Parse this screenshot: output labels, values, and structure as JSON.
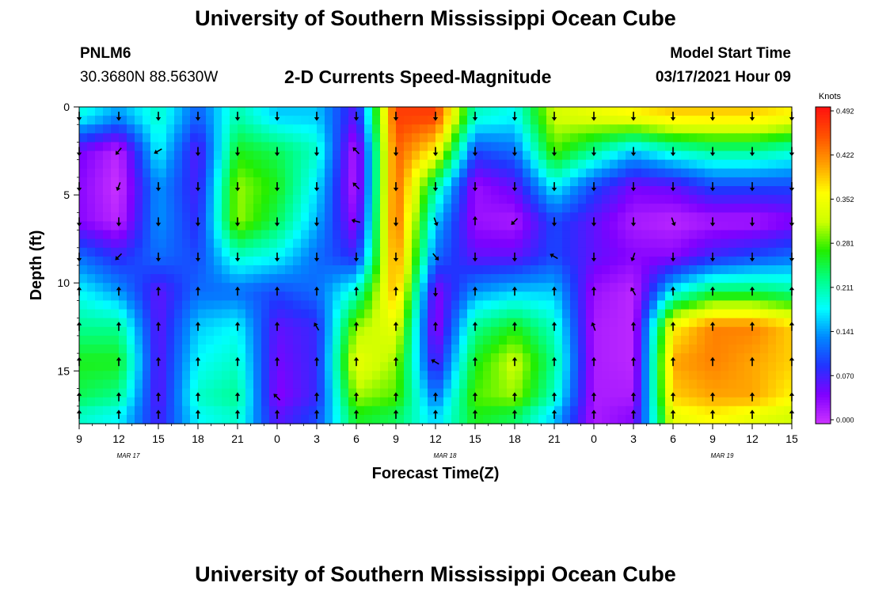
{
  "page": {
    "title_top": "University of Southern Mississippi Ocean Cube",
    "title_bottom": "University of Southern Mississippi Ocean Cube",
    "station_id": "PNLM6",
    "station_coords": "30.3680N 88.5630W",
    "subtitle": "2-D Currents Speed-Magnitude",
    "model_start_label": "Model Start Time",
    "model_start_value": "03/17/2021 Hour 09"
  },
  "colors": {
    "background": "#ffffff",
    "colormap": [
      "#cc33ff",
      "#8000ff",
      "#2233ff",
      "#0088ff",
      "#00ffff",
      "#00ff88",
      "#22ee00",
      "#ccff00",
      "#ffff00",
      "#ffa000",
      "#ff5000",
      "#ff1010"
    ]
  },
  "chart_data": {
    "type": "heatmap",
    "title": "2-D Currents Speed-Magnitude",
    "xlabel": "Forecast Time(Z)",
    "ylabel": "Depth (ft)",
    "x_hours_since_model_start_range": [
      0,
      54
    ],
    "xticks": [
      "9",
      "12",
      "15",
      "18",
      "21",
      "0",
      "3",
      "6",
      "9",
      "12",
      "15",
      "18",
      "21",
      "0",
      "3",
      "6",
      "9",
      "12",
      "15"
    ],
    "date_labels": [
      {
        "label": "MAR 17",
        "at_tick": "12"
      },
      {
        "label": "MAR 18",
        "at_tick": "12"
      },
      {
        "label": "MAR 19",
        "at_tick": "9"
      }
    ],
    "ylim": [
      18,
      0
    ],
    "yticks": [
      0,
      5,
      10,
      15
    ],
    "y_inverted": true,
    "grid": false,
    "colorbar": {
      "title": "Knots",
      "ticks": [
        "0.492",
        "0.422",
        "0.352",
        "0.281",
        "0.211",
        "0.141",
        "0.070",
        "0.000"
      ],
      "vmin": 0.0,
      "vmax": 0.492
    },
    "time_hours": [
      0,
      3,
      6,
      9,
      12,
      15,
      18,
      21,
      24,
      27,
      30,
      33,
      36,
      39,
      42,
      45,
      48,
      51,
      54
    ],
    "depth_ft": [
      0.5,
      2.5,
      4.5,
      6.5,
      8.5,
      10.5,
      12.5,
      14.5,
      16.5,
      17.5
    ],
    "speed_knots": [
      [
        0.19,
        0.14,
        0.2,
        0.11,
        0.21,
        0.16,
        0.16,
        0.06,
        0.46,
        0.46,
        0.2,
        0.18,
        0.32,
        0.34,
        0.36,
        0.38,
        0.38,
        0.38,
        0.36
      ],
      [
        0.05,
        0.01,
        0.18,
        0.06,
        0.26,
        0.24,
        0.2,
        0.01,
        0.44,
        0.36,
        0.1,
        0.12,
        0.28,
        0.22,
        0.16,
        0.2,
        0.22,
        0.22,
        0.2
      ],
      [
        0.04,
        0.0,
        0.14,
        0.07,
        0.3,
        0.26,
        0.17,
        0.01,
        0.44,
        0.22,
        0.03,
        0.06,
        0.18,
        0.1,
        0.05,
        0.06,
        0.1,
        0.1,
        0.1
      ],
      [
        0.04,
        0.01,
        0.14,
        0.08,
        0.3,
        0.24,
        0.15,
        0.03,
        0.44,
        0.16,
        0.03,
        0.02,
        0.1,
        0.06,
        0.02,
        0.01,
        0.02,
        0.02,
        0.04
      ],
      [
        0.12,
        0.08,
        0.12,
        0.1,
        0.2,
        0.18,
        0.12,
        0.08,
        0.42,
        0.12,
        0.06,
        0.06,
        0.1,
        0.06,
        0.04,
        0.04,
        0.08,
        0.1,
        0.12
      ],
      [
        0.18,
        0.14,
        0.06,
        0.12,
        0.12,
        0.1,
        0.12,
        0.2,
        0.4,
        0.04,
        0.14,
        0.16,
        0.16,
        0.03,
        0.01,
        0.18,
        0.24,
        0.24,
        0.22
      ],
      [
        0.22,
        0.22,
        0.06,
        0.16,
        0.18,
        0.06,
        0.08,
        0.3,
        0.34,
        0.03,
        0.22,
        0.26,
        0.2,
        0.02,
        0.01,
        0.36,
        0.42,
        0.42,
        0.38
      ],
      [
        0.26,
        0.26,
        0.06,
        0.18,
        0.2,
        0.05,
        0.08,
        0.34,
        0.3,
        0.06,
        0.26,
        0.32,
        0.22,
        0.02,
        0.01,
        0.4,
        0.42,
        0.4,
        0.38
      ],
      [
        0.24,
        0.22,
        0.06,
        0.2,
        0.22,
        0.04,
        0.08,
        0.3,
        0.28,
        0.12,
        0.28,
        0.3,
        0.2,
        0.02,
        0.02,
        0.38,
        0.4,
        0.4,
        0.36
      ],
      [
        0.2,
        0.18,
        0.07,
        0.18,
        0.2,
        0.06,
        0.1,
        0.26,
        0.24,
        0.16,
        0.26,
        0.24,
        0.16,
        0.02,
        0.04,
        0.34,
        0.36,
        0.34,
        0.32
      ]
    ],
    "arrow_direction_deg": [
      [
        180,
        180,
        180,
        180,
        180,
        180,
        180,
        180,
        180,
        180,
        180,
        180,
        180,
        180,
        180,
        180,
        180,
        180,
        180
      ],
      [
        180,
        220,
        240,
        180,
        180,
        180,
        180,
        315,
        180,
        180,
        180,
        180,
        180,
        180,
        180,
        180,
        180,
        180,
        180
      ],
      [
        180,
        200,
        180,
        180,
        180,
        180,
        180,
        315,
        180,
        180,
        180,
        180,
        180,
        180,
        180,
        180,
        180,
        180,
        180
      ],
      [
        180,
        180,
        180,
        180,
        180,
        180,
        180,
        285,
        180,
        160,
        0,
        225,
        180,
        180,
        180,
        160,
        180,
        180,
        180
      ],
      [
        180,
        225,
        180,
        180,
        180,
        180,
        180,
        180,
        180,
        140,
        180,
        180,
        300,
        180,
        200,
        180,
        180,
        180,
        180
      ],
      [
        0,
        0,
        0,
        0,
        0,
        0,
        0,
        0,
        0,
        180,
        0,
        0,
        0,
        0,
        330,
        0,
        0,
        0,
        0
      ],
      [
        0,
        0,
        0,
        0,
        0,
        0,
        330,
        0,
        0,
        0,
        0,
        0,
        0,
        340,
        0,
        0,
        0,
        0,
        0
      ],
      [
        0,
        0,
        0,
        0,
        0,
        0,
        0,
        0,
        0,
        300,
        0,
        0,
        0,
        0,
        0,
        0,
        0,
        0,
        0
      ],
      [
        0,
        0,
        0,
        0,
        0,
        315,
        0,
        0,
        0,
        0,
        0,
        0,
        0,
        0,
        0,
        0,
        0,
        0,
        0
      ],
      [
        0,
        0,
        0,
        0,
        0,
        0,
        0,
        0,
        0,
        0,
        0,
        0,
        0,
        0,
        0,
        0,
        0,
        0,
        0
      ]
    ]
  }
}
